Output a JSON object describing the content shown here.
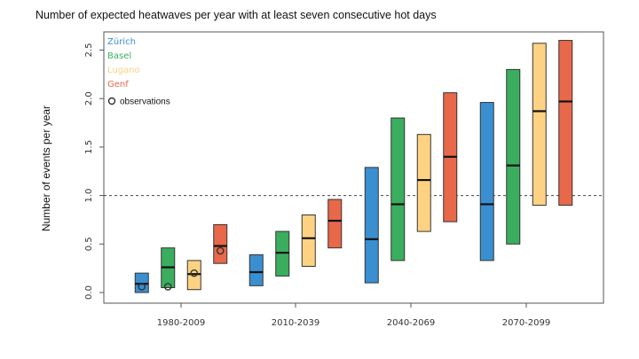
{
  "chart_data": {
    "type": "box",
    "title": "Number of expected heatwaves per year with at least seven consecutive hot days",
    "ylabel": "Number of events per year",
    "xlabel": "",
    "ylim": [
      0,
      2.65
    ],
    "yticks": [
      "0.0",
      "0.5",
      "1.0",
      "1.5",
      "2.0",
      "2.5"
    ],
    "reference_line": 1.0,
    "categories": [
      "1980-2009",
      "2010-2039",
      "2040-2069",
      "2070-2099"
    ],
    "series": [
      {
        "name": "Zürich",
        "color": "#3a8fd1",
        "ranges": [
          [
            0.0,
            0.2
          ],
          [
            0.07,
            0.39
          ],
          [
            0.1,
            1.29
          ],
          [
            0.33,
            1.96
          ]
        ],
        "medians": [
          0.09,
          0.21,
          0.55,
          0.91
        ]
      },
      {
        "name": "Basel",
        "color": "#3aae5e",
        "ranges": [
          [
            0.05,
            0.46
          ],
          [
            0.17,
            0.63
          ],
          [
            0.33,
            1.8
          ],
          [
            0.5,
            2.3
          ]
        ],
        "medians": [
          0.26,
          0.41,
          0.91,
          1.31
        ]
      },
      {
        "name": "Lugano",
        "color": "#fdd383",
        "ranges": [
          [
            0.03,
            0.33
          ],
          [
            0.27,
            0.8
          ],
          [
            0.63,
            1.63
          ],
          [
            0.9,
            2.57
          ]
        ],
        "medians": [
          0.19,
          0.56,
          1.16,
          1.87
        ]
      },
      {
        "name": "Genf",
        "color": "#e8684a",
        "ranges": [
          [
            0.3,
            0.7
          ],
          [
            0.46,
            0.96
          ],
          [
            0.73,
            2.06
          ],
          [
            0.9,
            2.6
          ]
        ],
        "medians": [
          0.48,
          0.74,
          1.4,
          1.97
        ]
      }
    ],
    "observations": {
      "label": "observations",
      "values": [
        [
          0.06,
          0.06,
          0.2,
          0.43
        ],
        [
          null,
          null,
          null,
          null
        ],
        [
          null,
          null,
          null,
          null
        ],
        [
          null,
          null,
          null,
          null
        ]
      ]
    },
    "legend_placement": "top-left"
  }
}
